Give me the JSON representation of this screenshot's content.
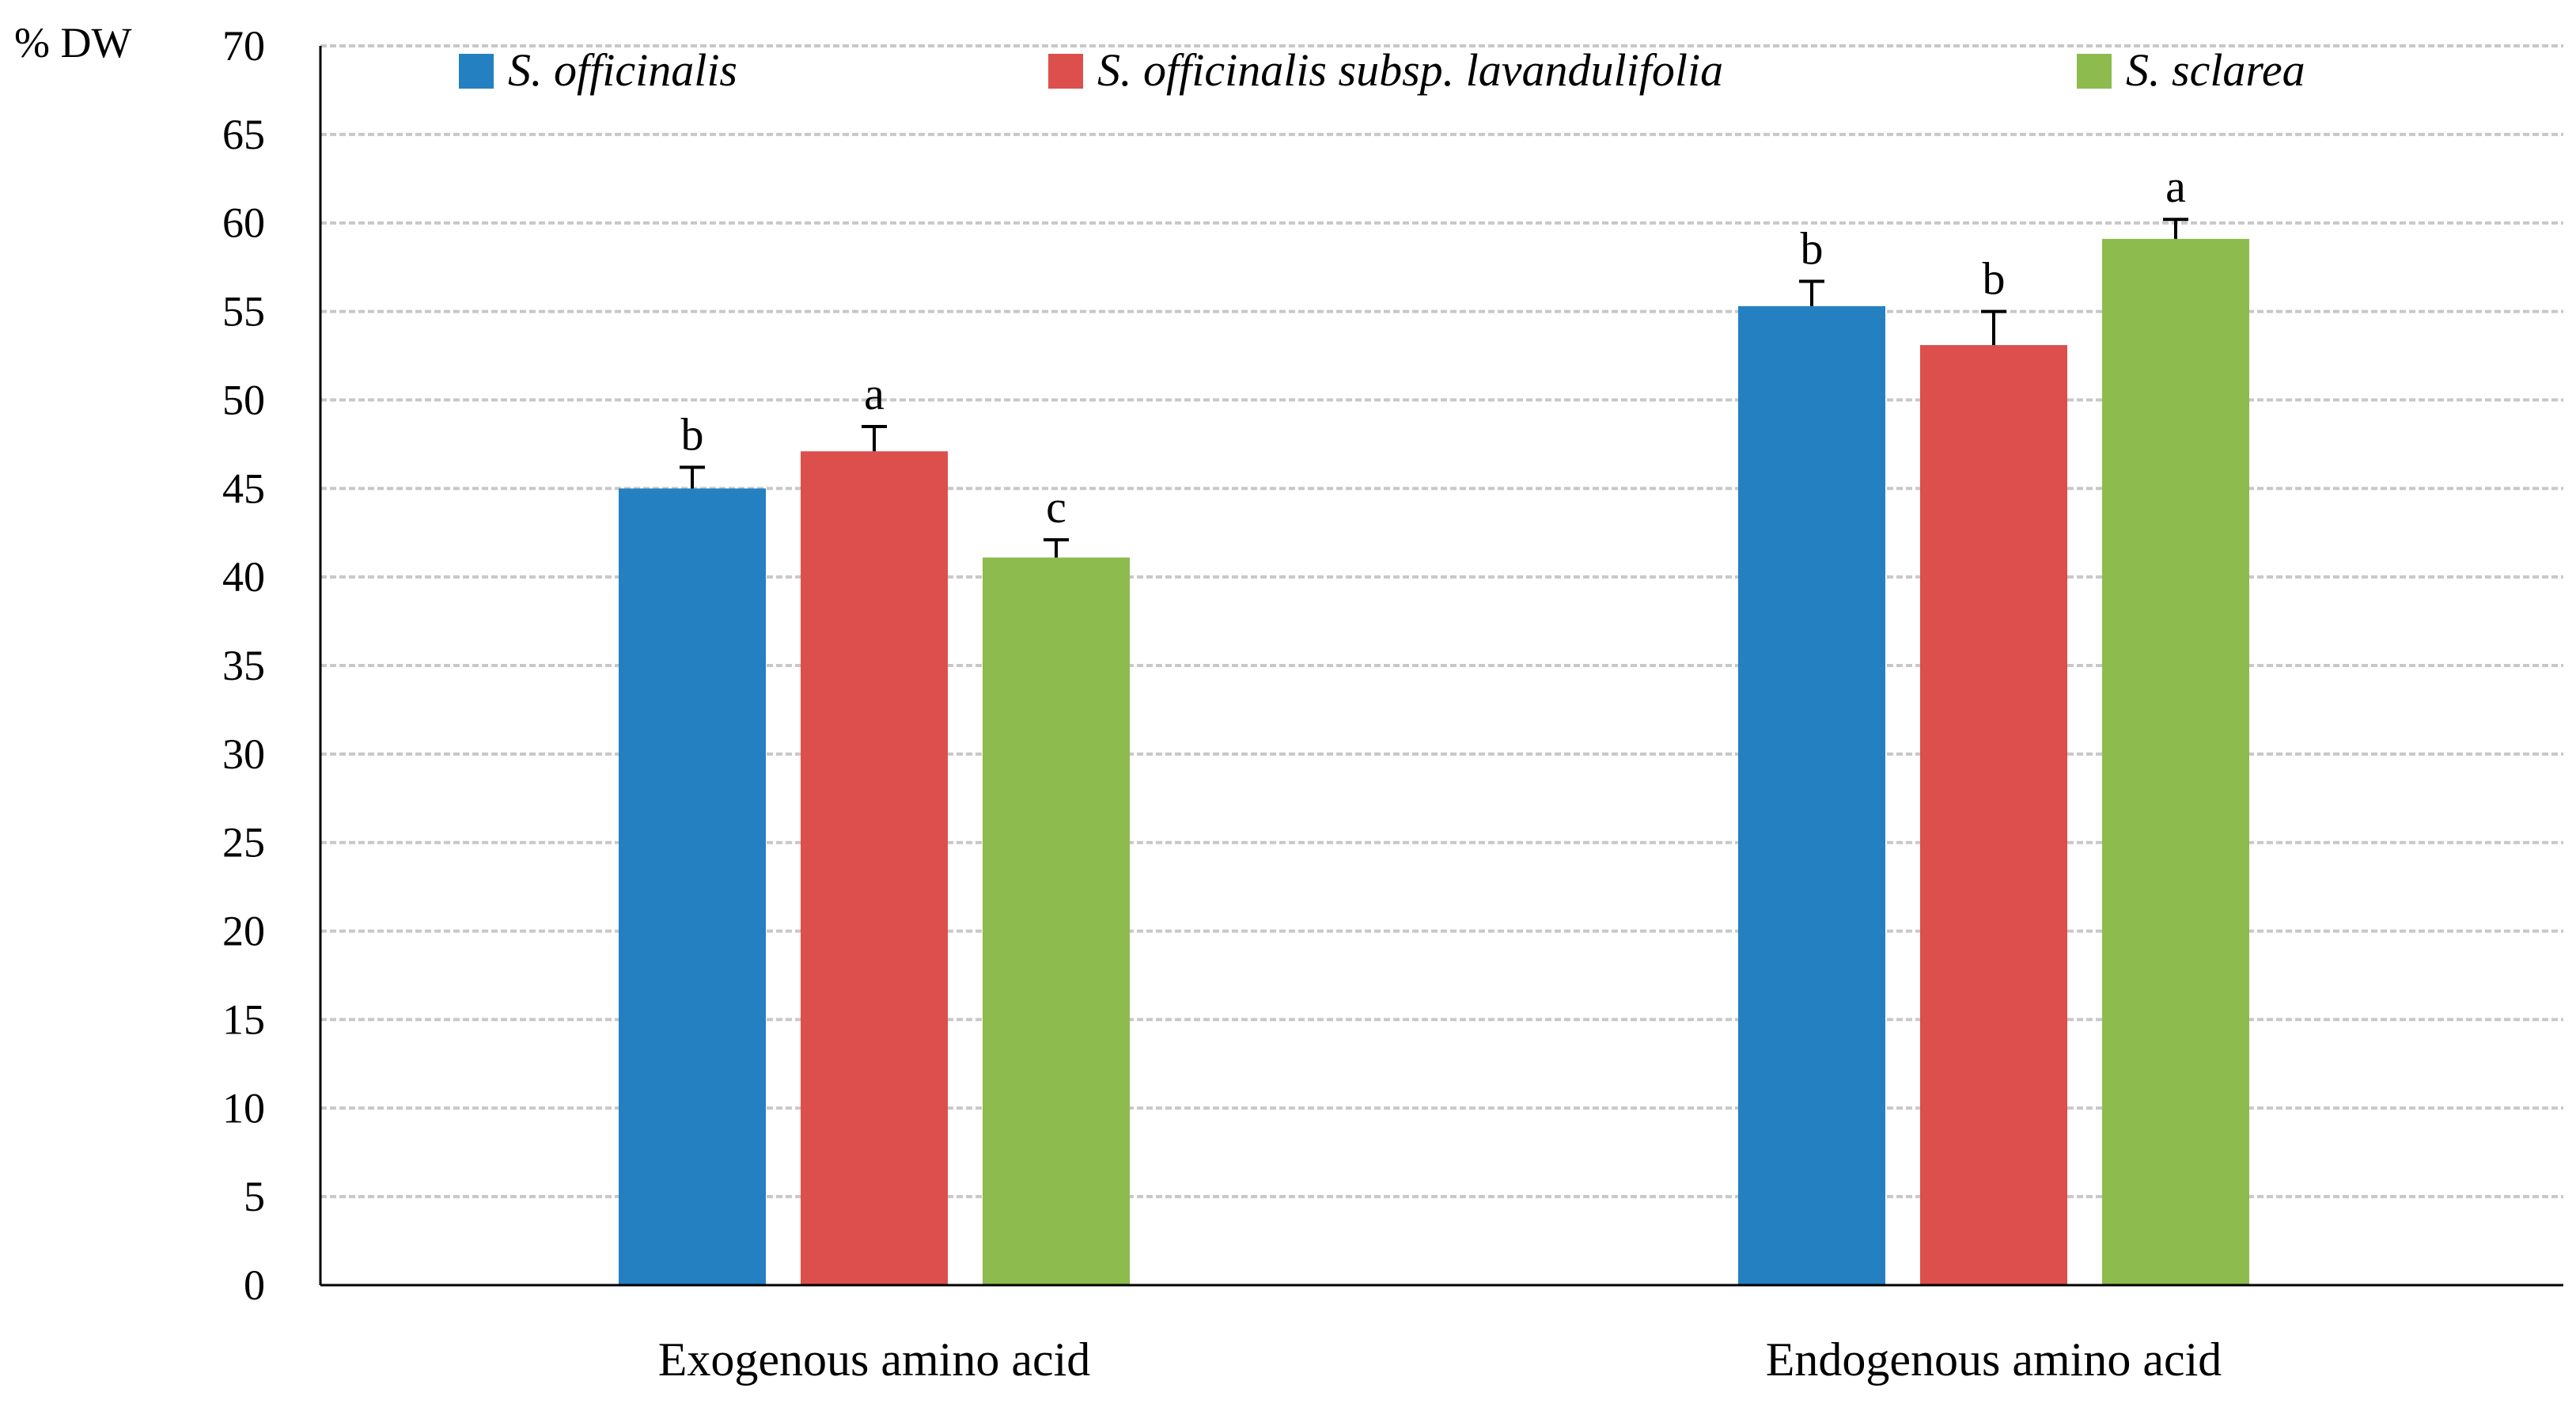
{
  "chart_data": {
    "type": "bar",
    "title": "",
    "xlabel": "",
    "ylabel": "% DW",
    "ylim": [
      0,
      70
    ],
    "yticks": [
      0,
      5,
      10,
      15,
      20,
      25,
      30,
      35,
      40,
      45,
      50,
      55,
      60,
      65,
      70
    ],
    "grid": true,
    "legend_position": "top",
    "categories": [
      "Exogenous amino acid",
      "Endogenous amino acid"
    ],
    "series": [
      {
        "name": "S. officinalis",
        "color": "#2580c2",
        "values": [
          45.0,
          55.3
        ],
        "errors": [
          1.2,
          1.4
        ],
        "significance": [
          "b",
          "b"
        ]
      },
      {
        "name": "S. officinalis subsp. lavandulifolia",
        "color": "#dc4f4c",
        "values": [
          47.1,
          53.1
        ],
        "errors": [
          1.4,
          1.9
        ],
        "significance": [
          "a",
          "b"
        ]
      },
      {
        "name": "S. sclarea",
        "color": "#8dbb4d",
        "values": [
          41.1,
          59.1
        ],
        "errors": [
          1.0,
          1.1
        ],
        "significance": [
          "c",
          "a"
        ]
      }
    ]
  }
}
